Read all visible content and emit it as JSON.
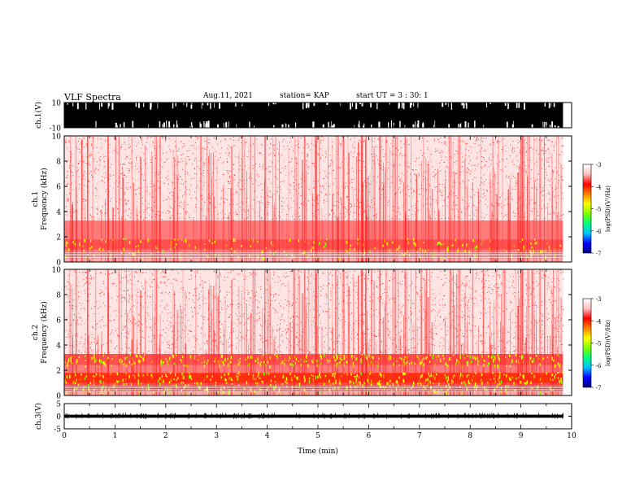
{
  "header": {
    "title": "VLF Spectra",
    "date": "Aug.11, 2021",
    "station": "station= KAP",
    "start": "start UT =  3 : 30: 1"
  },
  "chart_data": [
    {
      "type": "line",
      "panel": "ch1-waveform",
      "ylabel": "ch.1(V)",
      "ylim": [
        -10,
        10
      ],
      "yticks": [
        "10",
        "-10"
      ],
      "xlim": [
        0,
        10
      ],
      "description_hidden": false,
      "style": "dense black waveform saturating most of range"
    },
    {
      "type": "heatmap",
      "panel": "ch1-spectrogram",
      "ylabel": "ch.1\nFrequency (kHz)",
      "ylabel_line1": "ch.1",
      "ylabel_line2": "Frequency (kHz)",
      "ylim": [
        0,
        10
      ],
      "yticks": [
        "0",
        "2",
        "4",
        "6",
        "8",
        "10"
      ],
      "xlim": [
        0,
        10
      ],
      "data_end_min": 9.83,
      "bands": [
        {
          "from_khz": 0.0,
          "to_khz": 0.3,
          "level": 0.35
        },
        {
          "from_khz": 0.3,
          "to_khz": 1.0,
          "level": 0.55
        },
        {
          "from_khz": 1.0,
          "to_khz": 1.8,
          "level": 0.72
        },
        {
          "from_khz": 1.8,
          "to_khz": 3.3,
          "level": 0.55
        },
        {
          "from_khz": 3.3,
          "to_khz": 10.0,
          "level": 0.2
        }
      ],
      "colorbar": {
        "label": "log(PSD)(V²/Hz)",
        "min": -7,
        "max": -3,
        "ticks": [
          "-3",
          "-4",
          "-5",
          "-6",
          "-7"
        ]
      }
    },
    {
      "type": "heatmap",
      "panel": "ch2-spectrogram",
      "ylabel_line1": "ch.2",
      "ylabel_line2": "Frequency (kHz)",
      "ylim": [
        0,
        10
      ],
      "yticks": [
        "0",
        "2",
        "4",
        "6",
        "8",
        "10"
      ],
      "xlim": [
        0,
        10
      ],
      "data_end_min": 9.83,
      "bands": [
        {
          "from_khz": 0.0,
          "to_khz": 0.3,
          "level": 0.35
        },
        {
          "from_khz": 0.3,
          "to_khz": 1.0,
          "level": 0.7
        },
        {
          "from_khz": 1.0,
          "to_khz": 1.8,
          "level": 0.85
        },
        {
          "from_khz": 1.8,
          "to_khz": 2.4,
          "level": 0.6
        },
        {
          "from_khz": 2.4,
          "to_khz": 3.3,
          "level": 0.75
        },
        {
          "from_khz": 3.3,
          "to_khz": 10.0,
          "level": 0.22
        }
      ],
      "colorbar": {
        "label": "log(PSD)(V²/Hz)",
        "min": -7,
        "max": -3,
        "ticks": [
          "-3",
          "-4",
          "-5",
          "-6",
          "-7"
        ]
      }
    },
    {
      "type": "line",
      "panel": "ch3-waveform",
      "ylabel": "ch.3(V)",
      "ylim": [
        -5,
        5
      ],
      "yticks": [
        "5",
        "0",
        "-5"
      ],
      "xlim": [
        0,
        10
      ],
      "baseline_v": 0.0,
      "amplitude_v": 0.6
    }
  ],
  "x_axis": {
    "label": "Time (min)",
    "ticks": [
      "0",
      "1",
      "2",
      "3",
      "4",
      "5",
      "6",
      "7",
      "8",
      "9",
      "10"
    ]
  },
  "colors": {
    "colormap": [
      "#000080",
      "#0000ff",
      "#00c0ff",
      "#00ff80",
      "#80ff00",
      "#ffff00",
      "#ff8000",
      "#ff0000",
      "#ffc0c0",
      "#ffffff"
    ]
  }
}
